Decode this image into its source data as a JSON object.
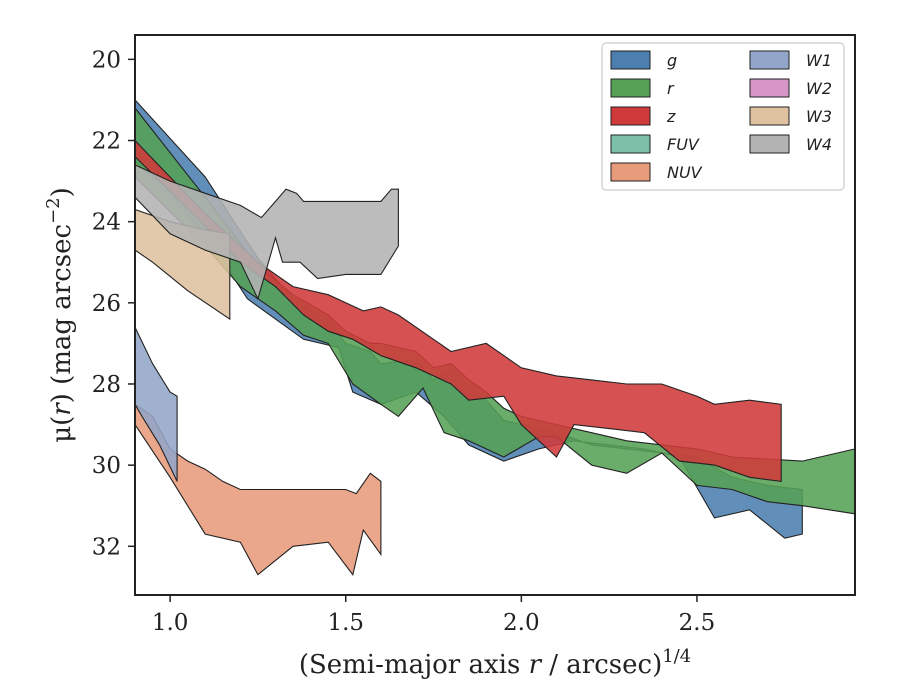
{
  "chart_data": {
    "type": "area",
    "xlabel": "(Semi-major axis r / arcsec)^1/4",
    "ylabel": "μ(r) (mag arcsec^−2)",
    "xlim": [
      0.9,
      2.95
    ],
    "ylim": [
      33.2,
      19.4
    ],
    "y_inverted": true,
    "grid": false,
    "legend_position": "top-right",
    "x_ticks": [
      "1.0",
      "1.5",
      "2.0",
      "2.5"
    ],
    "y_ticks": [
      "20",
      "22",
      "24",
      "26",
      "28",
      "30",
      "32"
    ],
    "x_tick_values": [
      1.0,
      1.5,
      2.0,
      2.5
    ],
    "y_tick_values": [
      20,
      22,
      24,
      26,
      28,
      30,
      32
    ],
    "series": [
      {
        "name": "g",
        "color": "#4c7fb0",
        "upper": [
          [
            0.9,
            21.0
          ],
          [
            1.1,
            22.9
          ],
          [
            1.25,
            24.9
          ],
          [
            1.35,
            25.9
          ],
          [
            1.45,
            26.4
          ],
          [
            1.5,
            27.0
          ],
          [
            1.57,
            27.2
          ],
          [
            1.6,
            27.5
          ],
          [
            1.7,
            27.4
          ],
          [
            1.75,
            27.9
          ],
          [
            1.8,
            27.6
          ],
          [
            1.85,
            28.1
          ],
          [
            1.9,
            28.4
          ],
          [
            1.95,
            28.9
          ],
          [
            2.0,
            29.0
          ],
          [
            2.1,
            29.2
          ],
          [
            2.2,
            29.5
          ],
          [
            2.3,
            29.6
          ],
          [
            2.4,
            29.7
          ],
          [
            2.5,
            29.8
          ],
          [
            2.6,
            30.3
          ],
          [
            2.7,
            30.5
          ],
          [
            2.8,
            30.6
          ]
        ],
        "lower": [
          [
            2.8,
            31.7
          ],
          [
            2.75,
            31.8
          ],
          [
            2.65,
            31.1
          ],
          [
            2.55,
            31.3
          ],
          [
            2.45,
            29.8
          ],
          [
            2.35,
            29.6
          ],
          [
            2.25,
            29.5
          ],
          [
            2.15,
            29.4
          ],
          [
            2.05,
            29.6
          ],
          [
            1.95,
            29.9
          ],
          [
            1.85,
            29.5
          ],
          [
            1.78,
            28.8
          ],
          [
            1.7,
            28.2
          ],
          [
            1.6,
            28.5
          ],
          [
            1.52,
            28.2
          ],
          [
            1.48,
            27.1
          ],
          [
            1.38,
            26.9
          ],
          [
            1.3,
            26.4
          ],
          [
            1.22,
            25.9
          ],
          [
            1.1,
            24.3
          ],
          [
            0.9,
            22.5
          ]
        ]
      },
      {
        "name": "r",
        "color": "#55a055",
        "upper": [
          [
            0.9,
            21.2
          ],
          [
            1.1,
            23.4
          ],
          [
            1.25,
            25.1
          ],
          [
            1.35,
            25.8
          ],
          [
            1.45,
            26.3
          ],
          [
            1.5,
            26.7
          ],
          [
            1.57,
            27.0
          ],
          [
            1.6,
            27.0
          ],
          [
            1.7,
            27.2
          ],
          [
            1.75,
            27.6
          ],
          [
            1.8,
            27.5
          ],
          [
            1.85,
            27.9
          ],
          [
            1.9,
            28.2
          ],
          [
            1.95,
            28.6
          ],
          [
            2.0,
            28.8
          ],
          [
            2.1,
            29.0
          ],
          [
            2.2,
            29.2
          ],
          [
            2.3,
            29.4
          ],
          [
            2.4,
            29.5
          ],
          [
            2.5,
            29.6
          ],
          [
            2.6,
            29.8
          ],
          [
            2.8,
            29.9
          ],
          [
            2.95,
            29.6
          ]
        ],
        "lower": [
          [
            2.95,
            31.2
          ],
          [
            2.8,
            31.0
          ],
          [
            2.7,
            30.9
          ],
          [
            2.6,
            30.6
          ],
          [
            2.5,
            30.5
          ],
          [
            2.4,
            29.7
          ],
          [
            2.3,
            30.2
          ],
          [
            2.2,
            30.0
          ],
          [
            2.1,
            29.3
          ],
          [
            2.05,
            29.3
          ],
          [
            1.95,
            29.8
          ],
          [
            1.85,
            29.4
          ],
          [
            1.78,
            29.2
          ],
          [
            1.72,
            28.1
          ],
          [
            1.65,
            28.8
          ],
          [
            1.6,
            28.5
          ],
          [
            1.52,
            28.0
          ],
          [
            1.45,
            27.0
          ],
          [
            1.38,
            26.8
          ],
          [
            1.3,
            26.2
          ],
          [
            1.2,
            25.6
          ],
          [
            1.1,
            24.6
          ],
          [
            0.9,
            22.9
          ]
        ]
      },
      {
        "name": "z",
        "color": "#d03a3a",
        "upper": [
          [
            0.9,
            22.0
          ],
          [
            1.1,
            23.8
          ],
          [
            1.25,
            25.0
          ],
          [
            1.35,
            25.6
          ],
          [
            1.45,
            25.8
          ],
          [
            1.5,
            26.0
          ],
          [
            1.55,
            26.2
          ],
          [
            1.6,
            26.1
          ],
          [
            1.65,
            26.3
          ],
          [
            1.7,
            26.6
          ],
          [
            1.75,
            26.9
          ],
          [
            1.8,
            27.2
          ],
          [
            1.9,
            27.0
          ],
          [
            1.95,
            27.3
          ],
          [
            2.0,
            27.6
          ],
          [
            2.1,
            27.8
          ],
          [
            2.2,
            27.9
          ],
          [
            2.3,
            28.0
          ],
          [
            2.4,
            28.0
          ],
          [
            2.5,
            28.3
          ],
          [
            2.55,
            28.5
          ],
          [
            2.65,
            28.4
          ],
          [
            2.74,
            28.5
          ]
        ],
        "lower": [
          [
            2.74,
            30.4
          ],
          [
            2.65,
            30.3
          ],
          [
            2.55,
            30.0
          ],
          [
            2.45,
            29.9
          ],
          [
            2.35,
            29.2
          ],
          [
            2.25,
            29.1
          ],
          [
            2.15,
            29.0
          ],
          [
            2.1,
            29.8
          ],
          [
            2.0,
            29.0
          ],
          [
            1.95,
            28.3
          ],
          [
            1.85,
            28.4
          ],
          [
            1.8,
            28.0
          ],
          [
            1.7,
            27.6
          ],
          [
            1.6,
            27.3
          ],
          [
            1.52,
            26.9
          ],
          [
            1.45,
            26.7
          ],
          [
            1.38,
            26.3
          ],
          [
            1.3,
            25.6
          ],
          [
            1.2,
            25.0
          ],
          [
            1.1,
            24.1
          ],
          [
            0.9,
            22.4
          ]
        ]
      },
      {
        "name": "FUV",
        "color": "#7cbfa8",
        "upper": [],
        "lower": []
      },
      {
        "name": "NUV",
        "color": "#e89b7b",
        "upper": [
          [
            0.9,
            28.5
          ],
          [
            0.95,
            28.8
          ],
          [
            1.0,
            29.6
          ],
          [
            1.05,
            29.9
          ],
          [
            1.1,
            30.1
          ],
          [
            1.15,
            30.4
          ],
          [
            1.2,
            30.6
          ],
          [
            1.3,
            30.6
          ],
          [
            1.4,
            30.6
          ],
          [
            1.5,
            30.6
          ],
          [
            1.53,
            30.7
          ],
          [
            1.57,
            30.2
          ],
          [
            1.6,
            30.4
          ],
          [
            1.6,
            32.2
          ]
        ],
        "lower": [
          [
            1.6,
            32.2
          ],
          [
            1.55,
            31.6
          ],
          [
            1.52,
            32.7
          ],
          [
            1.45,
            31.9
          ],
          [
            1.35,
            32.0
          ],
          [
            1.25,
            32.7
          ],
          [
            1.2,
            31.9
          ],
          [
            1.1,
            31.7
          ],
          [
            1.0,
            30.3
          ],
          [
            0.9,
            29.0
          ]
        ]
      },
      {
        "name": "W1",
        "color": "#93a5c8",
        "upper": [
          [
            0.9,
            26.6
          ],
          [
            0.95,
            27.5
          ],
          [
            1.0,
            28.2
          ],
          [
            1.02,
            28.3
          ],
          [
            1.02,
            30.4
          ]
        ],
        "lower": [
          [
            1.02,
            30.4
          ],
          [
            0.97,
            29.5
          ],
          [
            0.92,
            28.8
          ],
          [
            0.9,
            28.5
          ]
        ]
      },
      {
        "name": "W2",
        "color": "#d796c8",
        "upper": [],
        "lower": []
      },
      {
        "name": "W3",
        "color": "#dfc29f",
        "upper": [
          [
            0.9,
            23.7
          ],
          [
            1.0,
            24.0
          ],
          [
            1.1,
            24.2
          ],
          [
            1.17,
            24.3
          ],
          [
            1.17,
            26.4
          ]
        ],
        "lower": [
          [
            1.17,
            26.4
          ],
          [
            1.05,
            25.7
          ],
          [
            0.95,
            25.0
          ],
          [
            0.9,
            24.7
          ]
        ]
      },
      {
        "name": "W4",
        "color": "#b3b3b3",
        "upper": [
          [
            0.9,
            22.6
          ],
          [
            1.0,
            23.0
          ],
          [
            1.1,
            23.3
          ],
          [
            1.2,
            23.6
          ],
          [
            1.26,
            23.9
          ],
          [
            1.3,
            23.5
          ],
          [
            1.33,
            23.2
          ],
          [
            1.36,
            23.3
          ],
          [
            1.38,
            23.5
          ],
          [
            1.5,
            23.5
          ],
          [
            1.6,
            23.5
          ],
          [
            1.63,
            23.2
          ],
          [
            1.65,
            23.2
          ],
          [
            1.65,
            24.6
          ]
        ],
        "lower": [
          [
            1.65,
            24.6
          ],
          [
            1.6,
            25.3
          ],
          [
            1.5,
            25.3
          ],
          [
            1.42,
            25.4
          ],
          [
            1.37,
            25.0
          ],
          [
            1.32,
            25.0
          ],
          [
            1.3,
            24.4
          ],
          [
            1.25,
            25.9
          ],
          [
            1.2,
            25.0
          ],
          [
            1.1,
            24.7
          ],
          [
            1.0,
            24.3
          ],
          [
            0.9,
            23.4
          ]
        ]
      }
    ]
  },
  "legend": {
    "col1": [
      {
        "label": "g",
        "color": "#4c7fb0"
      },
      {
        "label": "r",
        "color": "#55a055"
      },
      {
        "label": "z",
        "color": "#d03a3a"
      },
      {
        "label": "FUV",
        "color": "#7cbfa8"
      },
      {
        "label": "NUV",
        "color": "#e89b7b"
      }
    ],
    "col2": [
      {
        "label": "W1",
        "color": "#93a5c8"
      },
      {
        "label": "W2",
        "color": "#d796c8"
      },
      {
        "label": "W3",
        "color": "#dfc29f"
      },
      {
        "label": "W4",
        "color": "#b3b3b3"
      }
    ]
  }
}
